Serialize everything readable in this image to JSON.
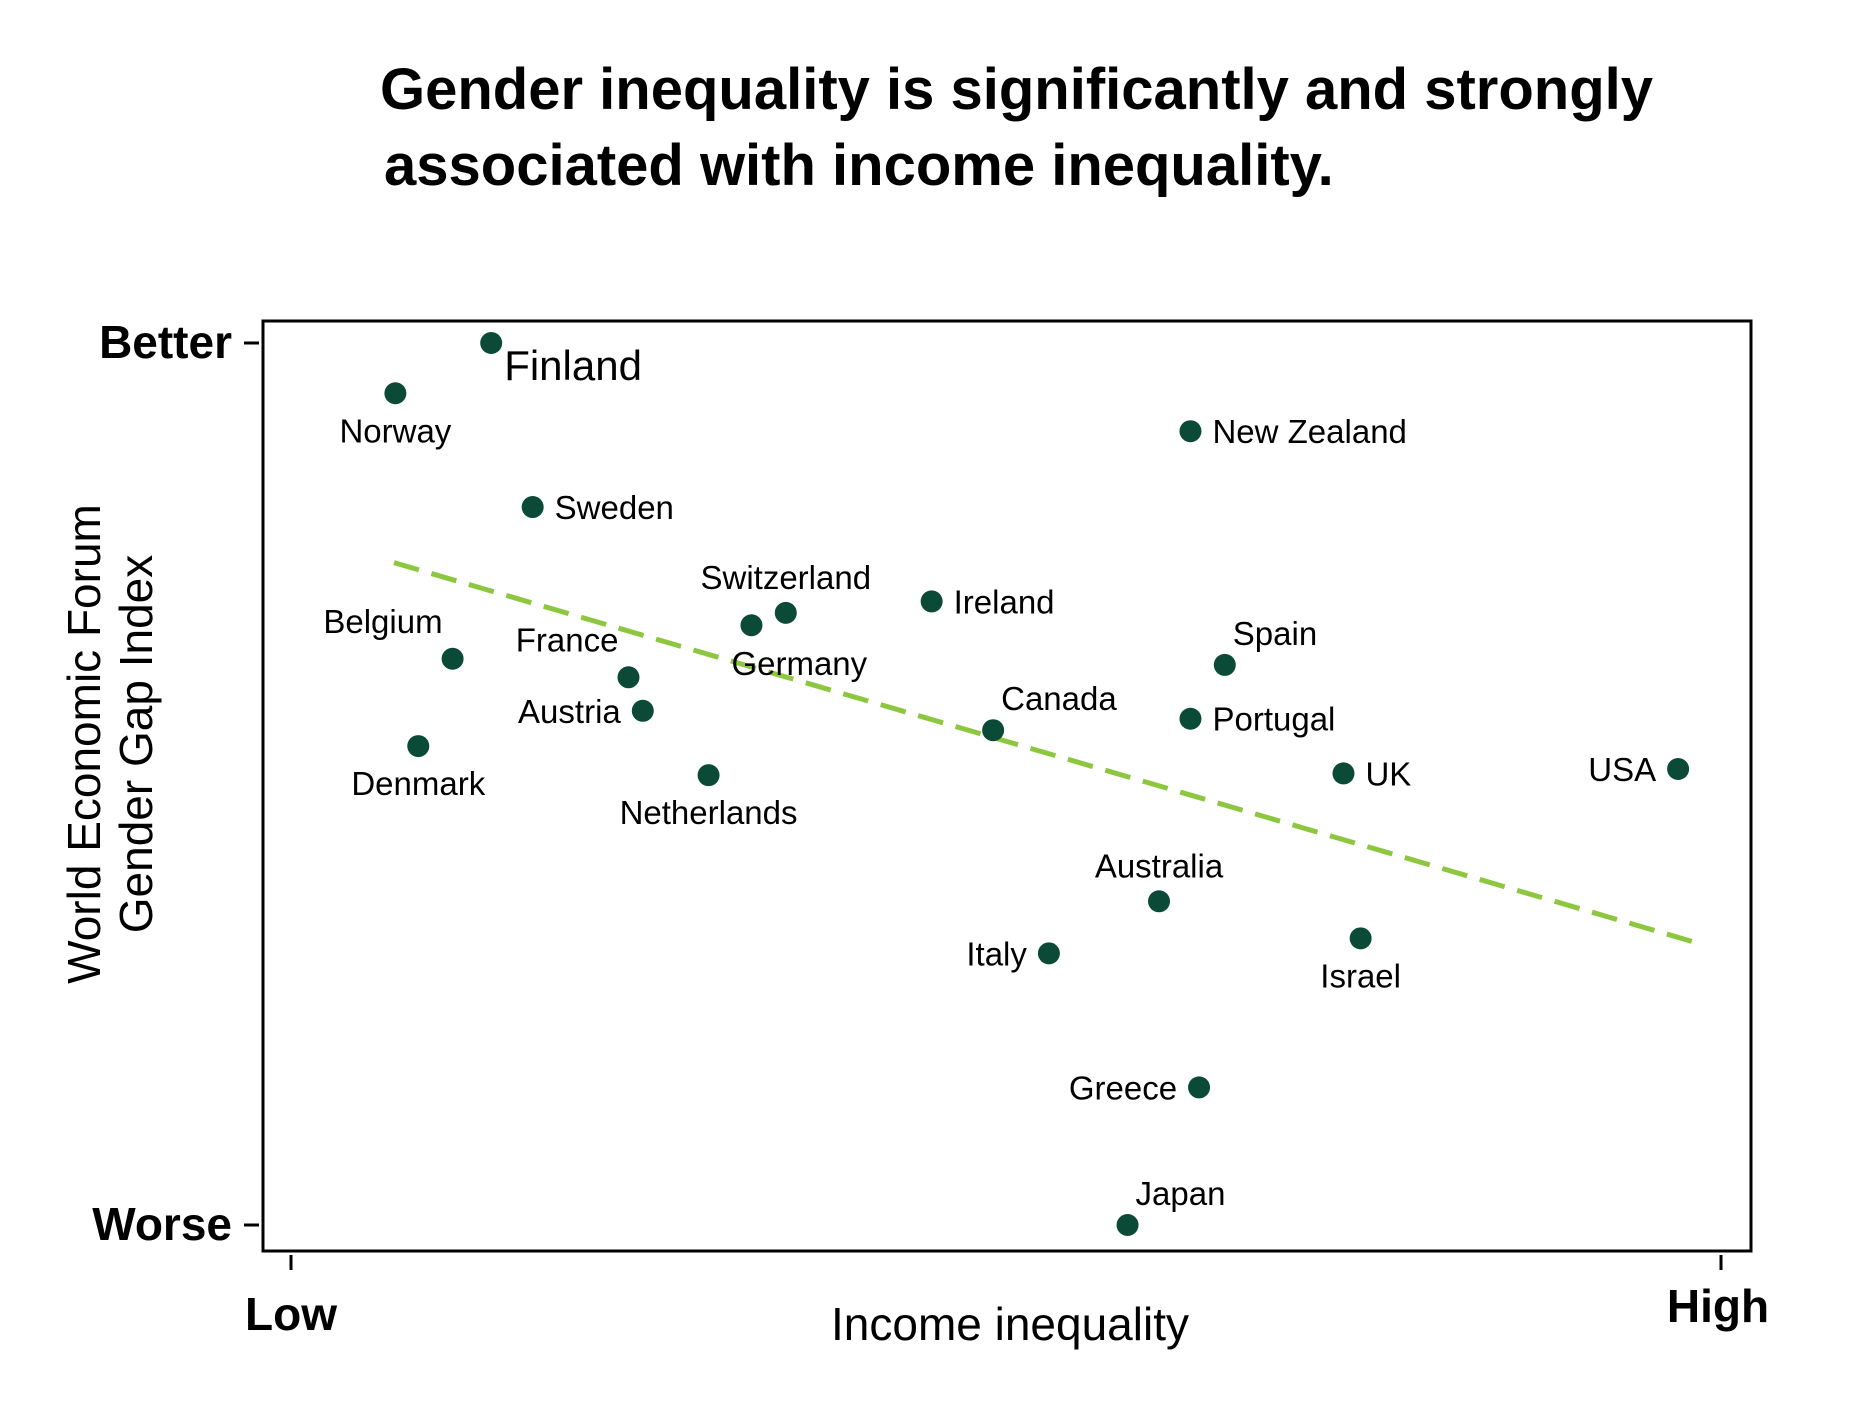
{
  "chart_data": {
    "type": "scatter",
    "title_lines": [
      "Gender inequality is significantly and strongly",
      "associated with income inequality."
    ],
    "xlabel": "Income inequality",
    "ylabel_lines": [
      "World Economic Forum",
      "Gender Gap Index"
    ],
    "x_ticks": [
      "Low",
      "High"
    ],
    "y_ticks": [
      "Better",
      "Worse"
    ],
    "xlim": [
      0,
      100
    ],
    "ylim": [
      0,
      100
    ],
    "colors": {
      "point": "#0b4a37",
      "trend": "#8dc63f",
      "axis": "#000000"
    },
    "trend_line": {
      "x": [
        7.2,
        98.3
      ],
      "y": [
        75.1,
        32.0
      ],
      "style": "dashed"
    },
    "points": [
      {
        "label": "Finland",
        "x": 14.0,
        "y": 100.0,
        "anchor": "label-below-right",
        "size": "large"
      },
      {
        "label": "Norway",
        "x": 7.3,
        "y": 94.3,
        "anchor": "below"
      },
      {
        "label": "New Zealand",
        "x": 62.9,
        "y": 90.0,
        "anchor": "right"
      },
      {
        "label": "Sweden",
        "x": 16.9,
        "y": 81.4,
        "anchor": "right"
      },
      {
        "label": "Ireland",
        "x": 44.8,
        "y": 70.7,
        "anchor": "right"
      },
      {
        "label": "Switzerland",
        "x": 34.6,
        "y": 69.4,
        "anchor": "above"
      },
      {
        "label": "Germany",
        "x": 32.2,
        "y": 68.0,
        "anchor": "below-right"
      },
      {
        "label": "Belgium",
        "x": 11.3,
        "y": 64.2,
        "anchor": "above-left"
      },
      {
        "label": "Spain",
        "x": 65.3,
        "y": 63.5,
        "anchor": "above-right"
      },
      {
        "label": "France",
        "x": 23.6,
        "y": 62.1,
        "anchor": "above-left"
      },
      {
        "label": "Austria",
        "x": 24.6,
        "y": 58.3,
        "anchor": "left"
      },
      {
        "label": "Portugal",
        "x": 62.9,
        "y": 57.4,
        "anchor": "right"
      },
      {
        "label": "Canada",
        "x": 49.1,
        "y": 56.1,
        "anchor": "above-right"
      },
      {
        "label": "Denmark",
        "x": 8.9,
        "y": 54.3,
        "anchor": "below"
      },
      {
        "label": "Netherlands",
        "x": 29.2,
        "y": 51.0,
        "anchor": "below"
      },
      {
        "label": "UK",
        "x": 73.6,
        "y": 51.2,
        "anchor": "right"
      },
      {
        "label": "USA",
        "x": 97.0,
        "y": 51.7,
        "anchor": "left"
      },
      {
        "label": "Australia",
        "x": 60.7,
        "y": 36.7,
        "anchor": "above"
      },
      {
        "label": "Israel",
        "x": 74.8,
        "y": 32.5,
        "anchor": "below"
      },
      {
        "label": "Italy",
        "x": 53.0,
        "y": 30.8,
        "anchor": "left"
      },
      {
        "label": "Greece",
        "x": 63.5,
        "y": 15.6,
        "anchor": "left"
      },
      {
        "label": "Japan",
        "x": 58.5,
        "y": 0.0,
        "anchor": "above-right"
      }
    ]
  }
}
